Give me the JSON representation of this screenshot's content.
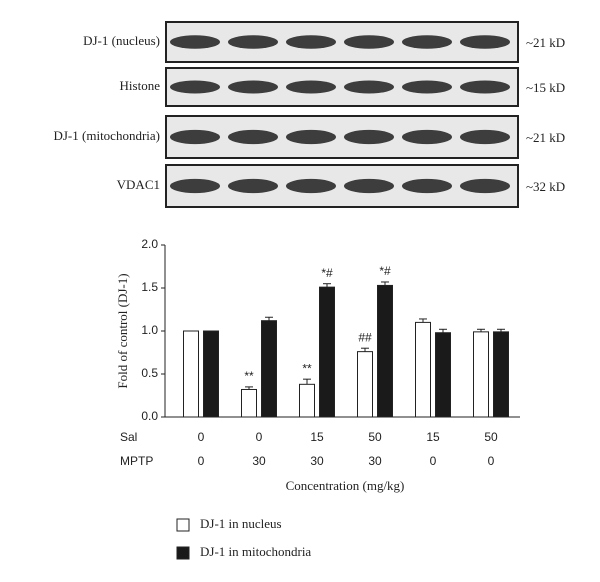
{
  "blots": [
    {
      "label": "DJ-1 (nucleus)",
      "size": "~21 kD"
    },
    {
      "label": "Histone",
      "size": "~15 kD"
    },
    {
      "label": "DJ-1 (mitochondria)",
      "size": "~21 kD"
    },
    {
      "label": "VDAC1",
      "size": "~32 kD"
    }
  ],
  "chart_data": {
    "type": "bar",
    "ylabel": "Fold of control (DJ-1)",
    "xlabel": "Concentration (mg/kg)",
    "category_row_labels": [
      "Sal",
      "MPTP"
    ],
    "categories": [
      {
        "Sal": "0",
        "MPTP": "0"
      },
      {
        "Sal": "0",
        "MPTP": "30"
      },
      {
        "Sal": "15",
        "MPTP": "30"
      },
      {
        "Sal": "50",
        "MPTP": "30"
      },
      {
        "Sal": "15",
        "MPTP": "0"
      },
      {
        "Sal": "50",
        "MPTP": "0"
      }
    ],
    "series": [
      {
        "name": "DJ-1 in nucleus",
        "color": "#ffffff",
        "values": [
          1.0,
          0.32,
          0.38,
          0.76,
          1.1,
          0.99
        ],
        "errors": [
          0.0,
          0.03,
          0.06,
          0.04,
          0.04,
          0.03
        ],
        "annotations": [
          null,
          "**",
          "**",
          "##",
          null,
          null
        ]
      },
      {
        "name": "DJ-1 in mitochondria",
        "color": "#1a1a1a",
        "values": [
          1.0,
          1.12,
          1.51,
          1.53,
          0.98,
          0.99
        ],
        "errors": [
          0.0,
          0.04,
          0.04,
          0.04,
          0.04,
          0.03
        ],
        "annotations": [
          null,
          null,
          "*#",
          "*#",
          null,
          null
        ]
      }
    ],
    "ylim": [
      0,
      2
    ],
    "yticks": [
      {
        "value": 0,
        "label": "0.0"
      },
      {
        "value": 0.5,
        "label": "0.5"
      },
      {
        "value": 1,
        "label": "1.0"
      },
      {
        "value": 1.5,
        "label": "1.5"
      },
      {
        "value": 2,
        "label": "2.0"
      }
    ]
  }
}
